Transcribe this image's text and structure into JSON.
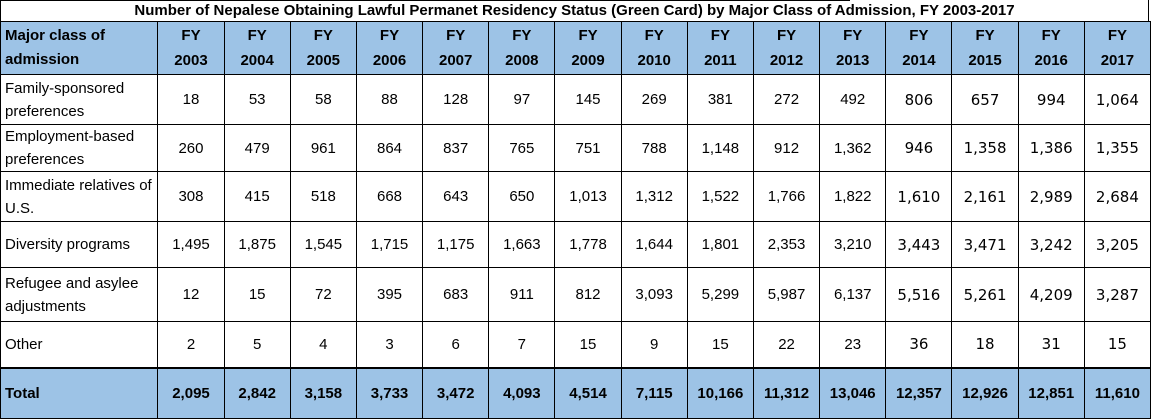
{
  "title": "Number of Nepalese Obtaining Lawful Permanet Residency Status (Green Card) by Major Class of Admission, FY 2003-2017",
  "colors": {
    "header_bg": "#9dc3e6",
    "total_bg": "#9dc3e6",
    "border": "#000000",
    "cell_bg": "#ffffff"
  },
  "table": {
    "corner_label": "Major class of admission",
    "fy_label": "FY",
    "years": [
      "2003",
      "2004",
      "2005",
      "2006",
      "2007",
      "2008",
      "2009",
      "2010",
      "2011",
      "2012",
      "2013",
      "2014",
      "2015",
      "2016",
      "2017"
    ],
    "rows": [
      {
        "label": "Family-sponsored preferences",
        "values": [
          "18",
          "53",
          "58",
          "88",
          "128",
          "97",
          "145",
          "269",
          "381",
          "272",
          "492",
          "806",
          "657",
          "994",
          "1,064"
        ]
      },
      {
        "label": "Employment-based preferences",
        "values": [
          "260",
          "479",
          "961",
          "864",
          "837",
          "765",
          "751",
          "788",
          "1,148",
          "912",
          "1,362",
          "946",
          "1,358",
          "1,386",
          "1,355"
        ]
      },
      {
        "label": "Immediate relatives of U.S.",
        "values": [
          "308",
          "415",
          "518",
          "668",
          "643",
          "650",
          "1,013",
          "1,312",
          "1,522",
          "1,766",
          "1,822",
          "1,610",
          "2,161",
          "2,989",
          "2,684"
        ]
      },
      {
        "label": "Diversity programs",
        "values": [
          "1,495",
          "1,875",
          "1,545",
          "1,715",
          "1,175",
          "1,663",
          "1,778",
          "1,644",
          "1,801",
          "2,353",
          "3,210",
          "3,443",
          "3,471",
          "3,242",
          "3,205"
        ]
      },
      {
        "label": "Refugee and asylee adjustments",
        "values": [
          "12",
          "15",
          "72",
          "395",
          "683",
          "911",
          "812",
          "3,093",
          "5,299",
          "5,987",
          "6,137",
          "5,516",
          "5,261",
          "4,209",
          "3,287"
        ]
      },
      {
        "label": "Other",
        "values": [
          "2",
          "5",
          "4",
          "3",
          "6",
          "7",
          "15",
          "9",
          "15",
          "22",
          "23",
          "36",
          "18",
          "31",
          "15"
        ]
      }
    ],
    "total": {
      "label": "Total",
      "values": [
        "2,095",
        "2,842",
        "3,158",
        "3,733",
        "3,472",
        "4,093",
        "4,514",
        "7,115",
        "10,166",
        "11,312",
        "13,046",
        "12,357",
        "12,926",
        "12,851",
        "11,610"
      ]
    }
  },
  "chart_data": {
    "type": "table",
    "title": "Number of Nepalese Obtaining Lawful Permanet Residency Status (Green Card) by Major Class of Admission, FY 2003-2017",
    "columns": [
      "FY 2003",
      "FY 2004",
      "FY 2005",
      "FY 2006",
      "FY 2007",
      "FY 2008",
      "FY 2009",
      "FY 2010",
      "FY 2011",
      "FY 2012",
      "FY 2013",
      "FY 2014",
      "FY 2015",
      "FY 2016",
      "FY 2017"
    ],
    "rows": [
      {
        "label": "Family-sponsored preferences",
        "values": [
          18,
          53,
          58,
          88,
          128,
          97,
          145,
          269,
          381,
          272,
          492,
          806,
          657,
          994,
          1064
        ]
      },
      {
        "label": "Employment-based preferences",
        "values": [
          260,
          479,
          961,
          864,
          837,
          765,
          751,
          788,
          1148,
          912,
          1362,
          946,
          1358,
          1386,
          1355
        ]
      },
      {
        "label": "Immediate relatives of U.S.",
        "values": [
          308,
          415,
          518,
          668,
          643,
          650,
          1013,
          1312,
          1522,
          1766,
          1822,
          1610,
          2161,
          2989,
          2684
        ]
      },
      {
        "label": "Diversity programs",
        "values": [
          1495,
          1875,
          1545,
          1715,
          1175,
          1663,
          1778,
          1644,
          1801,
          2353,
          3210,
          3443,
          3471,
          3242,
          3205
        ]
      },
      {
        "label": "Refugee and asylee adjustments",
        "values": [
          12,
          15,
          72,
          395,
          683,
          911,
          812,
          3093,
          5299,
          5987,
          6137,
          5516,
          5261,
          4209,
          3287
        ]
      },
      {
        "label": "Other",
        "values": [
          2,
          5,
          4,
          3,
          6,
          7,
          15,
          9,
          15,
          22,
          23,
          36,
          18,
          31,
          15
        ]
      },
      {
        "label": "Total",
        "values": [
          2095,
          2842,
          3158,
          3733,
          3472,
          4093,
          4514,
          7115,
          10166,
          11312,
          13046,
          12357,
          12926,
          12851,
          11610
        ]
      }
    ]
  }
}
